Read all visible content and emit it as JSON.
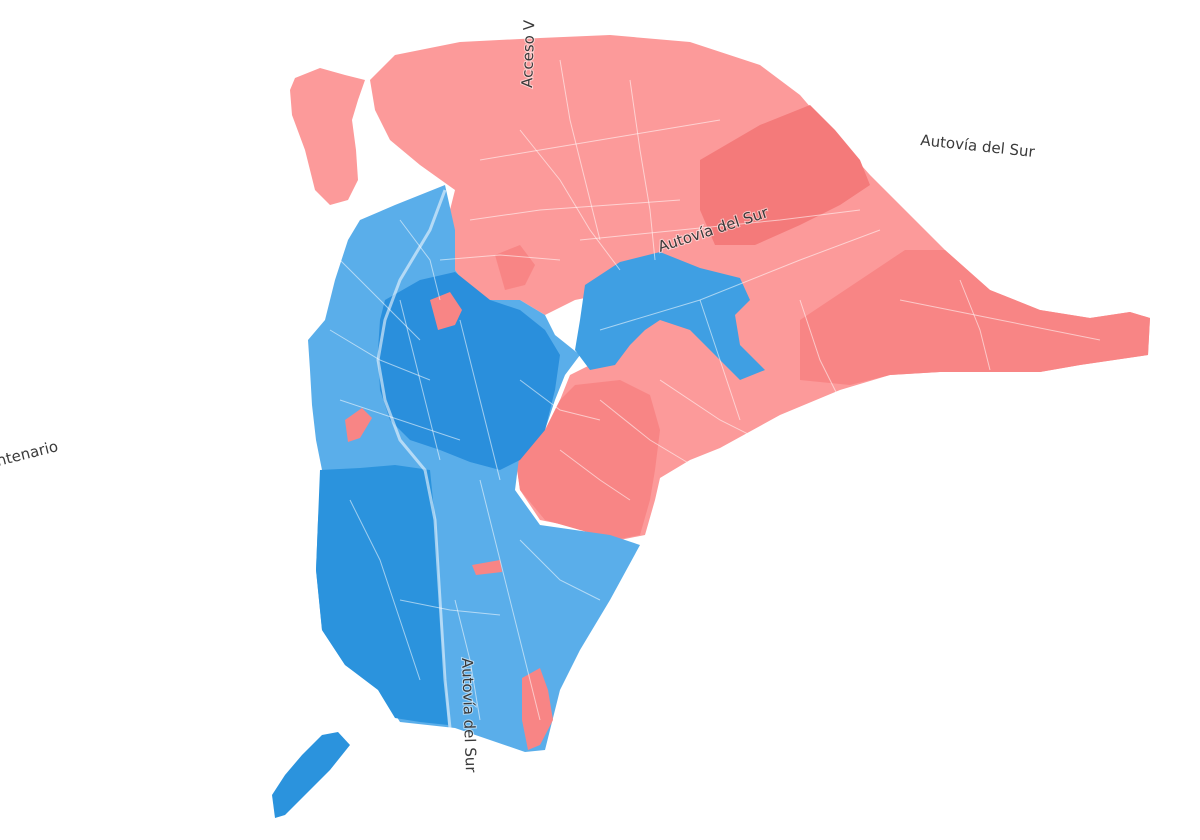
{
  "road_labels": {
    "autovia_east": "Autovía del Sur",
    "autovia_center": "Autovía del Sur",
    "autovia_south": "Autovía del Sur",
    "acceso": "Acceso V",
    "centenario": "ntenario"
  },
  "colors": {
    "background": "#ffffff",
    "red_light": "#fc9a9a",
    "red_medium": "#f88585",
    "red_dark": "#f06a6a",
    "blue_light": "#5aaeea",
    "blue_medium": "#3b9ee3",
    "blue_dark": "#1f86d6",
    "street_lines": "#ffffff"
  }
}
